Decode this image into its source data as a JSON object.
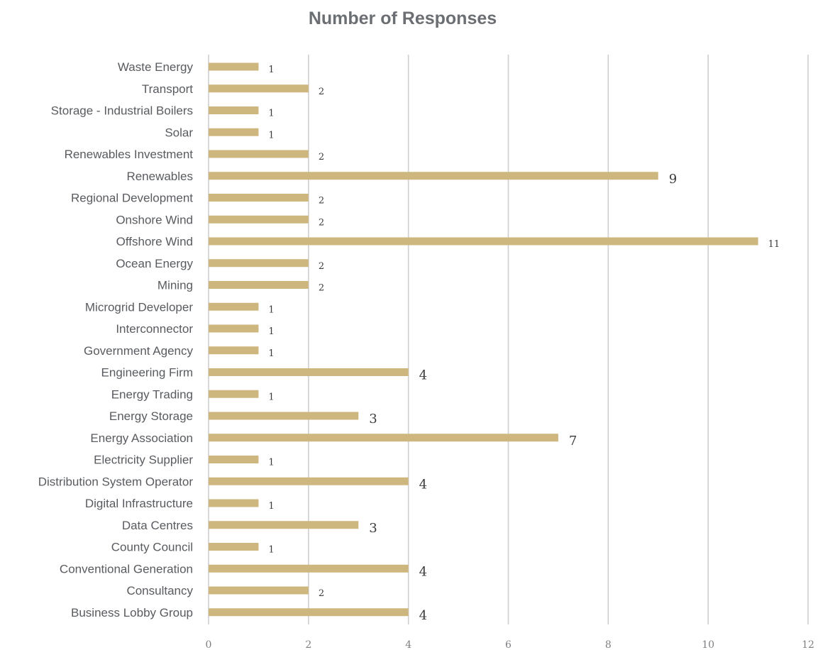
{
  "chart_data": {
    "type": "bar",
    "orientation": "horizontal",
    "title": "Number of Responses",
    "categories": [
      "Waste Energy",
      "Transport",
      "Storage - Industrial Boilers",
      "Solar",
      "Renewables Investment",
      "Renewables",
      "Regional Development",
      "Onshore Wind",
      "Offshore Wind",
      "Ocean Energy",
      "Mining",
      "Microgrid Developer",
      "Interconnector",
      "Government Agency",
      "Engineering Firm",
      "Energy Trading",
      "Energy Storage",
      "Energy Association",
      "Electricity Supplier",
      "Distribution System Operator",
      "Digital Infrastructure",
      "Data Centres",
      "County Council",
      "Conventional Generation",
      "Consultancy",
      "Business Lobby Group"
    ],
    "values": [
      1,
      2,
      1,
      1,
      2,
      9,
      2,
      2,
      11,
      2,
      2,
      1,
      1,
      1,
      4,
      1,
      3,
      7,
      1,
      4,
      1,
      3,
      1,
      4,
      2,
      4
    ],
    "xlim": [
      0,
      12
    ],
    "xticks": [
      0,
      2,
      4,
      6,
      8,
      10,
      12
    ],
    "grid": true,
    "bar_color": "#cdb77f",
    "grid_color": "#cfcfcf"
  }
}
